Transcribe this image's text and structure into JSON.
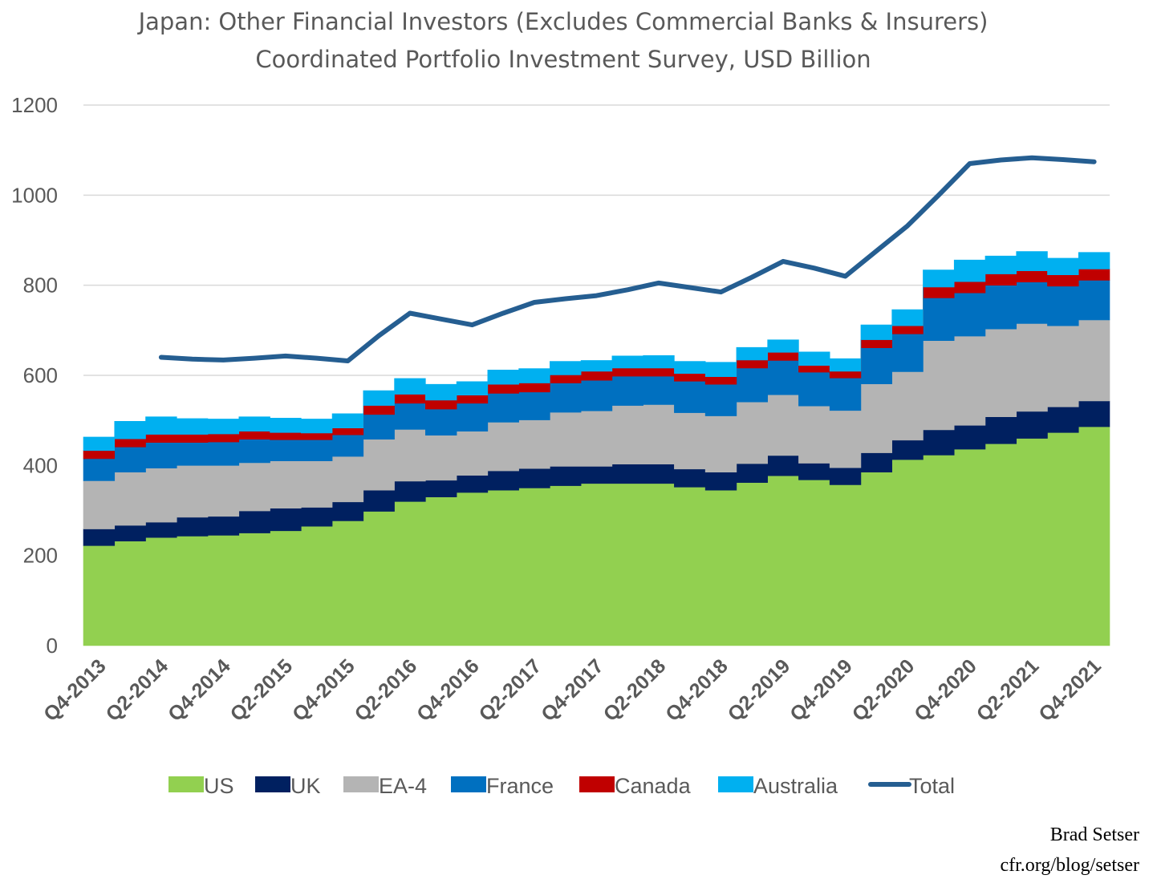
{
  "title": "Japan: Other Financial Investors (Excludes Commercial Banks & Insurers)",
  "subtitle": "Coordinated Portfolio Investment Survey, USD Billion",
  "credit": {
    "author": "Brad Setser",
    "source": "cfr.org/blog/setser"
  },
  "colors": {
    "US": "#92d050",
    "UK": "#002060",
    "EA-4": "#b4b4b4",
    "France": "#0070c0",
    "Canada": "#c00000",
    "Australia": "#00b0f0",
    "Total": "#255e91",
    "grid": "#d9d9d9"
  },
  "chart_data": {
    "type": "area",
    "stacked": true,
    "title": "Japan: Other Financial Investors (Excludes Commercial Banks & Insurers)",
    "subtitle": "Coordinated Portfolio Investment Survey, USD Billion",
    "ylim": [
      0,
      1200
    ],
    "yticks": [
      0,
      200,
      400,
      600,
      800,
      1000,
      1200
    ],
    "grid": true,
    "legend_position": "bottom",
    "x": [
      "Q4-2013",
      "Q1-2014",
      "Q2-2014",
      "Q3-2014",
      "Q4-2014",
      "Q1-2015",
      "Q2-2015",
      "Q3-2015",
      "Q4-2015",
      "Q1-2016",
      "Q2-2016",
      "Q3-2016",
      "Q4-2016",
      "Q1-2017",
      "Q2-2017",
      "Q3-2017",
      "Q4-2017",
      "Q1-2018",
      "Q2-2018",
      "Q3-2018",
      "Q4-2018",
      "Q1-2019",
      "Q2-2019",
      "Q3-2019",
      "Q4-2019",
      "Q1-2020",
      "Q2-2020",
      "Q3-2020",
      "Q4-2020",
      "Q1-2021",
      "Q2-2021",
      "Q3-2021",
      "Q4-2021"
    ],
    "x_tick_labels": [
      "Q4-2013",
      "Q2-2014",
      "Q4-2014",
      "Q2-2015",
      "Q4-2015",
      "Q2-2016",
      "Q4-2016",
      "Q2-2017",
      "Q4-2017",
      "Q2-2018",
      "Q4-2018",
      "Q2-2019",
      "Q4-2019",
      "Q2-2020",
      "Q4-2020",
      "Q2-2021",
      "Q4-2021"
    ],
    "series": [
      {
        "name": "US",
        "values": [
          222,
          232,
          240,
          243,
          245,
          250,
          255,
          265,
          277,
          298,
          320,
          330,
          340,
          345,
          350,
          355,
          360,
          360,
          360,
          352,
          345,
          362,
          377,
          368,
          357,
          385,
          413,
          423,
          436,
          448,
          460,
          473,
          486
        ]
      },
      {
        "name": "UK",
        "values": [
          37,
          35,
          34,
          42,
          42,
          49,
          50,
          42,
          42,
          47,
          45,
          37,
          38,
          43,
          43,
          43,
          38,
          43,
          43,
          40,
          40,
          42,
          45,
          37,
          38,
          43,
          43,
          56,
          53,
          60,
          60,
          57,
          57
        ]
      },
      {
        "name": "EA-4",
        "values": [
          107,
          118,
          120,
          115,
          113,
          107,
          105,
          103,
          101,
          113,
          115,
          100,
          98,
          108,
          108,
          120,
          123,
          130,
          132,
          125,
          125,
          137,
          135,
          127,
          127,
          153,
          152,
          198,
          198,
          195,
          195,
          180,
          180
        ]
      },
      {
        "name": "France",
        "values": [
          49,
          56,
          57,
          51,
          52,
          52,
          47,
          47,
          48,
          55,
          58,
          58,
          62,
          64,
          62,
          65,
          68,
          65,
          63,
          70,
          70,
          75,
          76,
          75,
          72,
          80,
          84,
          95,
          96,
          97,
          92,
          88,
          88
        ]
      },
      {
        "name": "Canada",
        "values": [
          18,
          18,
          18,
          18,
          18,
          18,
          16,
          15,
          15,
          20,
          20,
          20,
          18,
          20,
          20,
          18,
          20,
          18,
          18,
          17,
          17,
          18,
          18,
          15,
          15,
          18,
          18,
          24,
          25,
          25,
          25,
          25,
          25
        ]
      },
      {
        "name": "Australia",
        "values": [
          30,
          39,
          39,
          35,
          33,
          32,
          32,
          31,
          32,
          33,
          35,
          35,
          30,
          32,
          32,
          30,
          24,
          27,
          28,
          27,
          32,
          28,
          28,
          30,
          28,
          33,
          36,
          38,
          48,
          40,
          43,
          37,
          37
        ]
      },
      {
        "name": "Total",
        "type": "line",
        "values": [
          null,
          null,
          640,
          636,
          634,
          638,
          643,
          638,
          632,
          688,
          738,
          725,
          712,
          738,
          762,
          770,
          777,
          790,
          805,
          795,
          785,
          818,
          853,
          838,
          820,
          876,
          932,
          1000,
          1070,
          1078,
          1083,
          1079,
          1074
        ]
      }
    ]
  }
}
